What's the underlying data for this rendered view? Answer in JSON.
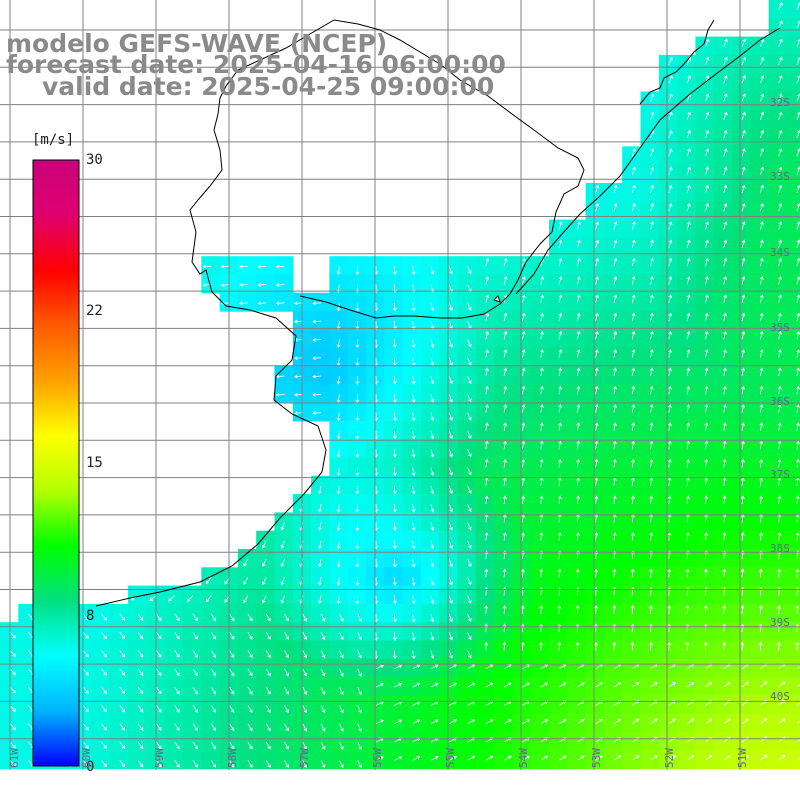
{
  "title": {
    "line1": "modelo GEFS-WAVE (NCEP)",
    "line2": "forecast date: 2025-04-16 06:00:00",
    "line3": "valid date: 2025-04-25 09:00:00"
  },
  "colorbar": {
    "unit": "[m/s]",
    "min": 0,
    "max": 30,
    "ticks": [
      "30",
      "22",
      "15",
      "8",
      "0"
    ],
    "tick_values": [
      30,
      22,
      15,
      8,
      0
    ],
    "stops": [
      "#0000ff",
      "#00b4ff",
      "#00ffff",
      "#00e080",
      "#00ff00",
      "#b4ff00",
      "#ffff00",
      "#ffa000",
      "#ff5a00",
      "#ff0000",
      "#e0006e",
      "#c8007a"
    ]
  },
  "map": {
    "lat_labels": [
      "32S",
      "33S",
      "34S",
      "35S",
      "36S",
      "37S",
      "38S",
      "39S",
      "40S"
    ],
    "lat_values": [
      -32,
      -33,
      -34,
      -35,
      -36,
      -37,
      -38,
      -39,
      -40
    ],
    "lon_labels": [
      "61W",
      "60W",
      "59W",
      "58W",
      "57W",
      "56W",
      "55W",
      "54W",
      "53W",
      "52W",
      "51W"
    ],
    "lon_values": [
      -61,
      -60,
      -59,
      -58,
      -57,
      -56,
      -55,
      -54,
      -53,
      -52,
      -51
    ],
    "colors": {
      "land": "#ffffff",
      "coast": "#000000",
      "grid": "#808080",
      "arrow": "#ffffff"
    }
  }
}
